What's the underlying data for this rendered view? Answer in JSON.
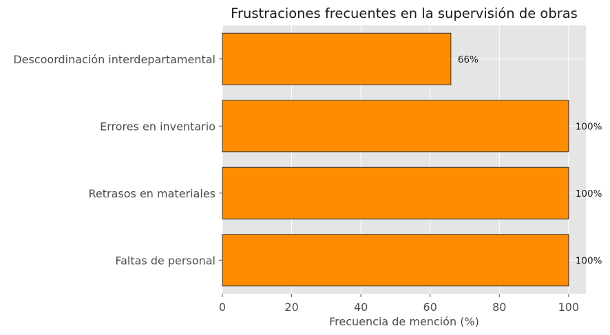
{
  "chart_data": {
    "type": "bar",
    "orientation": "horizontal",
    "title": "Frustraciones frecuentes en la supervisión de obras",
    "xlabel": "Frecuencia de mención (%)",
    "ylabel": "",
    "categories": [
      "Descoordinación interdepartamental",
      "Errores en inventario",
      "Retrasos en materiales",
      "Faltas de personal"
    ],
    "values": [
      66,
      100,
      100,
      100
    ],
    "value_labels": [
      "66%",
      "100%",
      "100%",
      "100%"
    ],
    "xlim": [
      0,
      105
    ],
    "xticks": [
      "0",
      "20",
      "40",
      "60",
      "80",
      "100"
    ],
    "grid": true,
    "bar_color": "#ff8c00",
    "bar_edge_color": "#333333",
    "plot_background": "#e5e5e5"
  }
}
